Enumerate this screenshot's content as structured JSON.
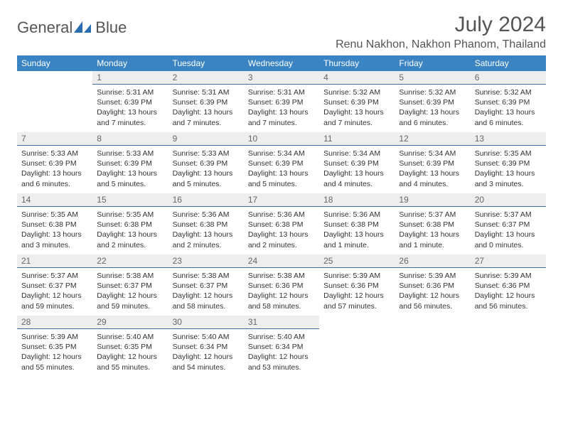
{
  "logo": {
    "text_left": "General",
    "text_right": "Blue"
  },
  "title": "July 2024",
  "location": "Renu Nakhon, Nakhon Phanom, Thailand",
  "colors": {
    "header_bg": "#3a84c4",
    "header_text": "#ffffff",
    "daybar_bg": "#eeeeee",
    "daybar_border": "#3a6fa0",
    "text": "#333333",
    "title_text": "#555555",
    "logo_blue": "#2a6cb0"
  },
  "weekdays": [
    "Sunday",
    "Monday",
    "Tuesday",
    "Wednesday",
    "Thursday",
    "Friday",
    "Saturday"
  ],
  "weeks": [
    [
      null,
      {
        "n": "1",
        "sr": "Sunrise: 5:31 AM",
        "ss": "Sunset: 6:39 PM",
        "d1": "Daylight: 13 hours",
        "d2": "and 7 minutes."
      },
      {
        "n": "2",
        "sr": "Sunrise: 5:31 AM",
        "ss": "Sunset: 6:39 PM",
        "d1": "Daylight: 13 hours",
        "d2": "and 7 minutes."
      },
      {
        "n": "3",
        "sr": "Sunrise: 5:31 AM",
        "ss": "Sunset: 6:39 PM",
        "d1": "Daylight: 13 hours",
        "d2": "and 7 minutes."
      },
      {
        "n": "4",
        "sr": "Sunrise: 5:32 AM",
        "ss": "Sunset: 6:39 PM",
        "d1": "Daylight: 13 hours",
        "d2": "and 7 minutes."
      },
      {
        "n": "5",
        "sr": "Sunrise: 5:32 AM",
        "ss": "Sunset: 6:39 PM",
        "d1": "Daylight: 13 hours",
        "d2": "and 6 minutes."
      },
      {
        "n": "6",
        "sr": "Sunrise: 5:32 AM",
        "ss": "Sunset: 6:39 PM",
        "d1": "Daylight: 13 hours",
        "d2": "and 6 minutes."
      }
    ],
    [
      {
        "n": "7",
        "sr": "Sunrise: 5:33 AM",
        "ss": "Sunset: 6:39 PM",
        "d1": "Daylight: 13 hours",
        "d2": "and 6 minutes."
      },
      {
        "n": "8",
        "sr": "Sunrise: 5:33 AM",
        "ss": "Sunset: 6:39 PM",
        "d1": "Daylight: 13 hours",
        "d2": "and 5 minutes."
      },
      {
        "n": "9",
        "sr": "Sunrise: 5:33 AM",
        "ss": "Sunset: 6:39 PM",
        "d1": "Daylight: 13 hours",
        "d2": "and 5 minutes."
      },
      {
        "n": "10",
        "sr": "Sunrise: 5:34 AM",
        "ss": "Sunset: 6:39 PM",
        "d1": "Daylight: 13 hours",
        "d2": "and 5 minutes."
      },
      {
        "n": "11",
        "sr": "Sunrise: 5:34 AM",
        "ss": "Sunset: 6:39 PM",
        "d1": "Daylight: 13 hours",
        "d2": "and 4 minutes."
      },
      {
        "n": "12",
        "sr": "Sunrise: 5:34 AM",
        "ss": "Sunset: 6:39 PM",
        "d1": "Daylight: 13 hours",
        "d2": "and 4 minutes."
      },
      {
        "n": "13",
        "sr": "Sunrise: 5:35 AM",
        "ss": "Sunset: 6:39 PM",
        "d1": "Daylight: 13 hours",
        "d2": "and 3 minutes."
      }
    ],
    [
      {
        "n": "14",
        "sr": "Sunrise: 5:35 AM",
        "ss": "Sunset: 6:38 PM",
        "d1": "Daylight: 13 hours",
        "d2": "and 3 minutes."
      },
      {
        "n": "15",
        "sr": "Sunrise: 5:35 AM",
        "ss": "Sunset: 6:38 PM",
        "d1": "Daylight: 13 hours",
        "d2": "and 2 minutes."
      },
      {
        "n": "16",
        "sr": "Sunrise: 5:36 AM",
        "ss": "Sunset: 6:38 PM",
        "d1": "Daylight: 13 hours",
        "d2": "and 2 minutes."
      },
      {
        "n": "17",
        "sr": "Sunrise: 5:36 AM",
        "ss": "Sunset: 6:38 PM",
        "d1": "Daylight: 13 hours",
        "d2": "and 2 minutes."
      },
      {
        "n": "18",
        "sr": "Sunrise: 5:36 AM",
        "ss": "Sunset: 6:38 PM",
        "d1": "Daylight: 13 hours",
        "d2": "and 1 minute."
      },
      {
        "n": "19",
        "sr": "Sunrise: 5:37 AM",
        "ss": "Sunset: 6:38 PM",
        "d1": "Daylight: 13 hours",
        "d2": "and 1 minute."
      },
      {
        "n": "20",
        "sr": "Sunrise: 5:37 AM",
        "ss": "Sunset: 6:37 PM",
        "d1": "Daylight: 13 hours",
        "d2": "and 0 minutes."
      }
    ],
    [
      {
        "n": "21",
        "sr": "Sunrise: 5:37 AM",
        "ss": "Sunset: 6:37 PM",
        "d1": "Daylight: 12 hours",
        "d2": "and 59 minutes."
      },
      {
        "n": "22",
        "sr": "Sunrise: 5:38 AM",
        "ss": "Sunset: 6:37 PM",
        "d1": "Daylight: 12 hours",
        "d2": "and 59 minutes."
      },
      {
        "n": "23",
        "sr": "Sunrise: 5:38 AM",
        "ss": "Sunset: 6:37 PM",
        "d1": "Daylight: 12 hours",
        "d2": "and 58 minutes."
      },
      {
        "n": "24",
        "sr": "Sunrise: 5:38 AM",
        "ss": "Sunset: 6:36 PM",
        "d1": "Daylight: 12 hours",
        "d2": "and 58 minutes."
      },
      {
        "n": "25",
        "sr": "Sunrise: 5:39 AM",
        "ss": "Sunset: 6:36 PM",
        "d1": "Daylight: 12 hours",
        "d2": "and 57 minutes."
      },
      {
        "n": "26",
        "sr": "Sunrise: 5:39 AM",
        "ss": "Sunset: 6:36 PM",
        "d1": "Daylight: 12 hours",
        "d2": "and 56 minutes."
      },
      {
        "n": "27",
        "sr": "Sunrise: 5:39 AM",
        "ss": "Sunset: 6:36 PM",
        "d1": "Daylight: 12 hours",
        "d2": "and 56 minutes."
      }
    ],
    [
      {
        "n": "28",
        "sr": "Sunrise: 5:39 AM",
        "ss": "Sunset: 6:35 PM",
        "d1": "Daylight: 12 hours",
        "d2": "and 55 minutes."
      },
      {
        "n": "29",
        "sr": "Sunrise: 5:40 AM",
        "ss": "Sunset: 6:35 PM",
        "d1": "Daylight: 12 hours",
        "d2": "and 55 minutes."
      },
      {
        "n": "30",
        "sr": "Sunrise: 5:40 AM",
        "ss": "Sunset: 6:34 PM",
        "d1": "Daylight: 12 hours",
        "d2": "and 54 minutes."
      },
      {
        "n": "31",
        "sr": "Sunrise: 5:40 AM",
        "ss": "Sunset: 6:34 PM",
        "d1": "Daylight: 12 hours",
        "d2": "and 53 minutes."
      },
      null,
      null,
      null
    ]
  ]
}
